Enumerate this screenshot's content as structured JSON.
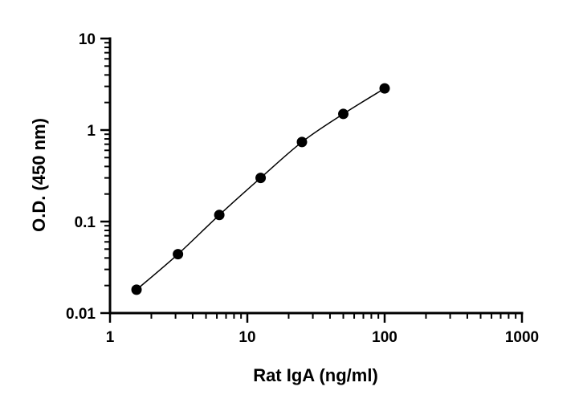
{
  "chart_data": {
    "type": "scatter",
    "title": "",
    "xlabel": "Rat IgA (ng/ml)",
    "ylabel": "O.D. (450 nm)",
    "xscale": "log",
    "yscale": "log",
    "xlim": [
      1,
      1000
    ],
    "ylim": [
      0.01,
      10
    ],
    "xticks": [
      "1",
      "10",
      "100",
      "1000"
    ],
    "yticks": [
      "0.01",
      "0.1",
      "1",
      "10"
    ],
    "grid": false,
    "legend": "none",
    "fit_curve": true,
    "colors": {
      "marker": "#000000",
      "line": "#000000",
      "axis": "#000000"
    },
    "points": [
      {
        "x": 1.56,
        "y": 0.018
      },
      {
        "x": 3.125,
        "y": 0.044
      },
      {
        "x": 6.25,
        "y": 0.118
      },
      {
        "x": 12.5,
        "y": 0.3
      },
      {
        "x": 25,
        "y": 0.74
      },
      {
        "x": 50,
        "y": 1.5
      },
      {
        "x": 100,
        "y": 2.85
      }
    ]
  }
}
